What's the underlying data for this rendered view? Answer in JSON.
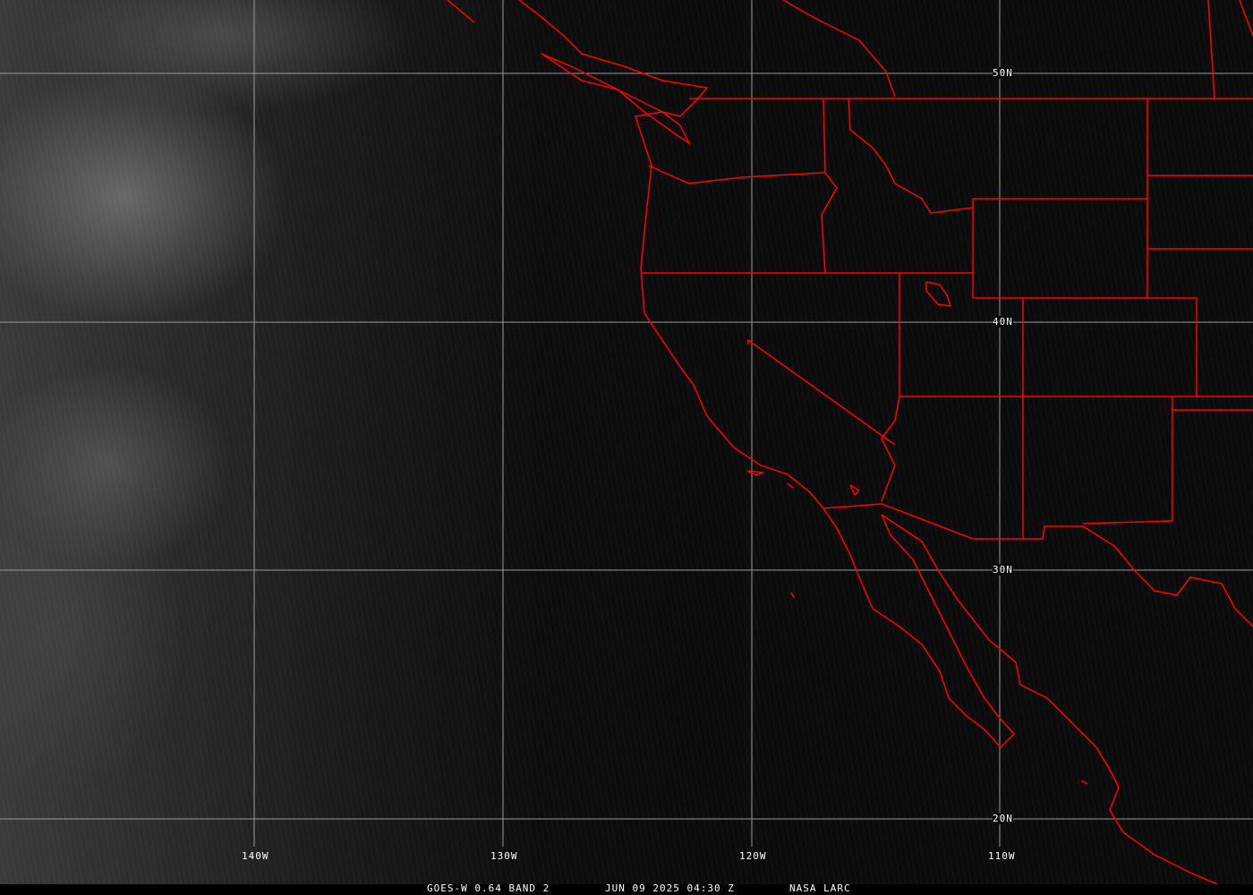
{
  "colors": {
    "borders": "#ff0000",
    "grid": "#9a9a9a",
    "text": "#ffffff"
  },
  "grid": {
    "longitudes": [
      {
        "label": "140W"
      },
      {
        "label": "130W"
      },
      {
        "label": "120W"
      },
      {
        "label": "110W"
      }
    ],
    "latitudes": [
      {
        "label": "50N"
      },
      {
        "label": "40N"
      },
      {
        "label": "30N"
      },
      {
        "label": "20N"
      }
    ]
  },
  "caption": {
    "product": "GOES-W 0.64 BAND 2",
    "datetime": "JUN 09 2025 04:30 Z",
    "source": "NASA LARC"
  }
}
